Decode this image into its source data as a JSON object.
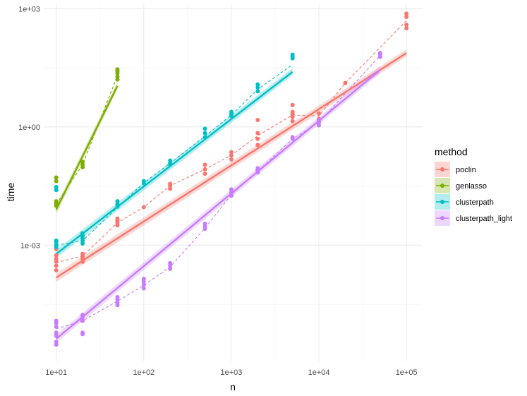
{
  "chart_data": {
    "type": "scatter",
    "title": "",
    "xlabel": "n",
    "ylabel": "time",
    "x_scale": "log10",
    "y_scale": "log10",
    "xlim": [
      7.2,
      150000
    ],
    "ylim": [
      1.12e-06,
      1300
    ],
    "x_ticks": [
      10,
      100,
      1000,
      10000,
      100000
    ],
    "x_tick_labels": [
      "1e+01",
      "1e+02",
      "1e+03",
      "1e+04",
      "1e+05"
    ],
    "y_ticks": [
      0.001,
      1,
      1000
    ],
    "y_tick_labels": [
      "1e-03",
      "1e+00",
      "1e+03"
    ],
    "grid": true,
    "legend": {
      "title": "method",
      "position": "right",
      "entries": [
        "poclin",
        "genlasso",
        "clusterpath",
        "clusterpath_light"
      ]
    },
    "series": [
      {
        "name": "poclin",
        "color": "#F8766D",
        "points": [
          [
            10,
            0.00023
          ],
          [
            10,
            0.0003
          ],
          [
            10,
            0.00038
          ],
          [
            10,
            0.00045
          ],
          [
            10,
            0.00055
          ],
          [
            10,
            0.0008
          ],
          [
            20,
            0.00038
          ],
          [
            20,
            0.00045
          ],
          [
            20,
            0.00052
          ],
          [
            20,
            0.0006
          ],
          [
            20,
            0.0011
          ],
          [
            50,
            0.0032
          ],
          [
            50,
            0.0037
          ],
          [
            50,
            0.0042
          ],
          [
            50,
            0.0047
          ],
          [
            100,
            0.0092
          ],
          [
            200,
            0.027
          ],
          [
            200,
            0.032
          ],
          [
            200,
            0.036
          ],
          [
            500,
            0.065
          ],
          [
            500,
            0.085
          ],
          [
            500,
            0.11
          ],
          [
            1000,
            0.15
          ],
          [
            1000,
            0.19
          ],
          [
            1000,
            0.23
          ],
          [
            2000,
            0.35
          ],
          [
            2000,
            0.5
          ],
          [
            2000,
            0.7
          ],
          [
            2000,
            1.5
          ],
          [
            5000,
            1.4
          ],
          [
            5000,
            1.8
          ],
          [
            5000,
            2.1
          ],
          [
            5000,
            2.4
          ],
          [
            5000,
            3.6
          ],
          [
            10000,
            1.6
          ],
          [
            10000,
            2.2
          ],
          [
            20000,
            13
          ],
          [
            100000,
            320
          ],
          [
            100000,
            390
          ],
          [
            100000,
            620
          ],
          [
            100000,
            750
          ]
        ],
        "mean_line": [
          [
            10,
            0.00036
          ],
          [
            20,
            0.00053
          ],
          [
            50,
            0.0037
          ],
          [
            100,
            0.0092
          ],
          [
            200,
            0.032
          ],
          [
            500,
            0.085
          ],
          [
            1000,
            0.19
          ],
          [
            2000,
            0.6
          ],
          [
            5000,
            2.0
          ],
          [
            10000,
            1.9
          ],
          [
            20000,
            13
          ],
          [
            100000,
            500
          ]
        ],
        "fit_line": [
          [
            10,
            0.00015
          ],
          [
            100000,
            75
          ]
        ]
      },
      {
        "name": "genlasso",
        "color": "#7CAE00",
        "points": [
          [
            10,
            0.01
          ],
          [
            10,
            0.011
          ],
          [
            10,
            0.012
          ],
          [
            10,
            0.013
          ],
          [
            10,
            0.042
          ],
          [
            10,
            0.052
          ],
          [
            20,
            0.095
          ],
          [
            20,
            0.11
          ],
          [
            20,
            0.13
          ],
          [
            50,
            16
          ],
          [
            50,
            19
          ],
          [
            50,
            23
          ],
          [
            50,
            26
          ],
          [
            50,
            29
          ]
        ],
        "mean_line": [
          [
            10,
            0.011
          ],
          [
            20,
            0.11
          ],
          [
            50,
            20
          ]
        ],
        "fit_line": [
          [
            10,
            0.008
          ],
          [
            50,
            11
          ]
        ]
      },
      {
        "name": "clusterpath",
        "color": "#00BFC4",
        "points": [
          [
            10,
            0.0009
          ],
          [
            10,
            0.001
          ],
          [
            10,
            0.0012
          ],
          [
            10,
            0.0013
          ],
          [
            10,
            0.025
          ],
          [
            10,
            0.03
          ],
          [
            20,
            0.0011
          ],
          [
            20,
            0.0013
          ],
          [
            20,
            0.0015
          ],
          [
            20,
            0.0017
          ],
          [
            20,
            0.002
          ],
          [
            50,
            0.0095
          ],
          [
            50,
            0.011
          ],
          [
            50,
            0.013
          ],
          [
            100,
            0.037
          ],
          [
            100,
            0.042
          ],
          [
            200,
            0.11
          ],
          [
            200,
            0.12
          ],
          [
            200,
            0.14
          ],
          [
            500,
            0.55
          ],
          [
            500,
            0.7
          ],
          [
            500,
            0.9
          ],
          [
            1000,
            1.9
          ],
          [
            1000,
            2.1
          ],
          [
            1000,
            2.4
          ],
          [
            2000,
            8
          ],
          [
            2000,
            10
          ],
          [
            2000,
            12
          ],
          [
            5000,
            55
          ],
          [
            5000,
            60
          ],
          [
            5000,
            68
          ]
        ],
        "mean_line": [
          [
            10,
            0.001
          ],
          [
            20,
            0.0013
          ],
          [
            50,
            0.009
          ],
          [
            100,
            0.038
          ],
          [
            200,
            0.12
          ],
          [
            500,
            0.58
          ],
          [
            1000,
            2.0
          ],
          [
            2000,
            9
          ],
          [
            5000,
            38
          ]
        ],
        "fit_line": [
          [
            10,
            0.0006
          ],
          [
            5000,
            25
          ]
        ]
      },
      {
        "name": "clusterpath_light",
        "color": "#C77CFF",
        "points": [
          [
            10,
            3e-06
          ],
          [
            10,
            3.5e-06
          ],
          [
            10,
            5e-06
          ],
          [
            10,
            6e-06
          ],
          [
            10,
            8.5e-06
          ],
          [
            10,
            1.05e-05
          ],
          [
            10,
            1.2e-05
          ],
          [
            20,
            5.5e-06
          ],
          [
            20,
            6e-06
          ],
          [
            20,
            1.2e-05
          ],
          [
            20,
            1.5e-05
          ],
          [
            20,
            1.7e-05
          ],
          [
            50,
            3e-05
          ],
          [
            50,
            3.5e-05
          ],
          [
            50,
            4.2e-05
          ],
          [
            50,
            4.8e-05
          ],
          [
            100,
            8e-05
          ],
          [
            100,
            0.0001
          ],
          [
            100,
            0.00012
          ],
          [
            100,
            0.00014
          ],
          [
            200,
            0.00025
          ],
          [
            200,
            0.0003
          ],
          [
            200,
            0.00035
          ],
          [
            500,
            0.0026
          ],
          [
            500,
            0.003
          ],
          [
            500,
            0.0035
          ],
          [
            1000,
            0.018
          ],
          [
            1000,
            0.022
          ],
          [
            1000,
            0.026
          ],
          [
            2000,
            0.07
          ],
          [
            2000,
            0.08
          ],
          [
            2000,
            0.09
          ],
          [
            5000,
            0.5
          ],
          [
            5000,
            0.55
          ],
          [
            10000,
            1.1
          ],
          [
            10000,
            1.3
          ],
          [
            10000,
            1.5
          ],
          [
            50000,
            60
          ],
          [
            50000,
            68
          ],
          [
            50000,
            75
          ]
        ],
        "mean_line": [
          [
            10,
            7.5e-06
          ],
          [
            20,
            1.2e-05
          ],
          [
            50,
            3.8e-05
          ],
          [
            100,
            9.5e-05
          ],
          [
            200,
            0.00028
          ],
          [
            500,
            0.0027
          ],
          [
            1000,
            0.019
          ],
          [
            2000,
            0.075
          ],
          [
            5000,
            0.5
          ],
          [
            10000,
            1.3
          ],
          [
            50000,
            65
          ]
        ],
        "fit_line": [
          [
            10,
            4.2e-06
          ],
          [
            50000,
            28
          ]
        ]
      }
    ]
  }
}
